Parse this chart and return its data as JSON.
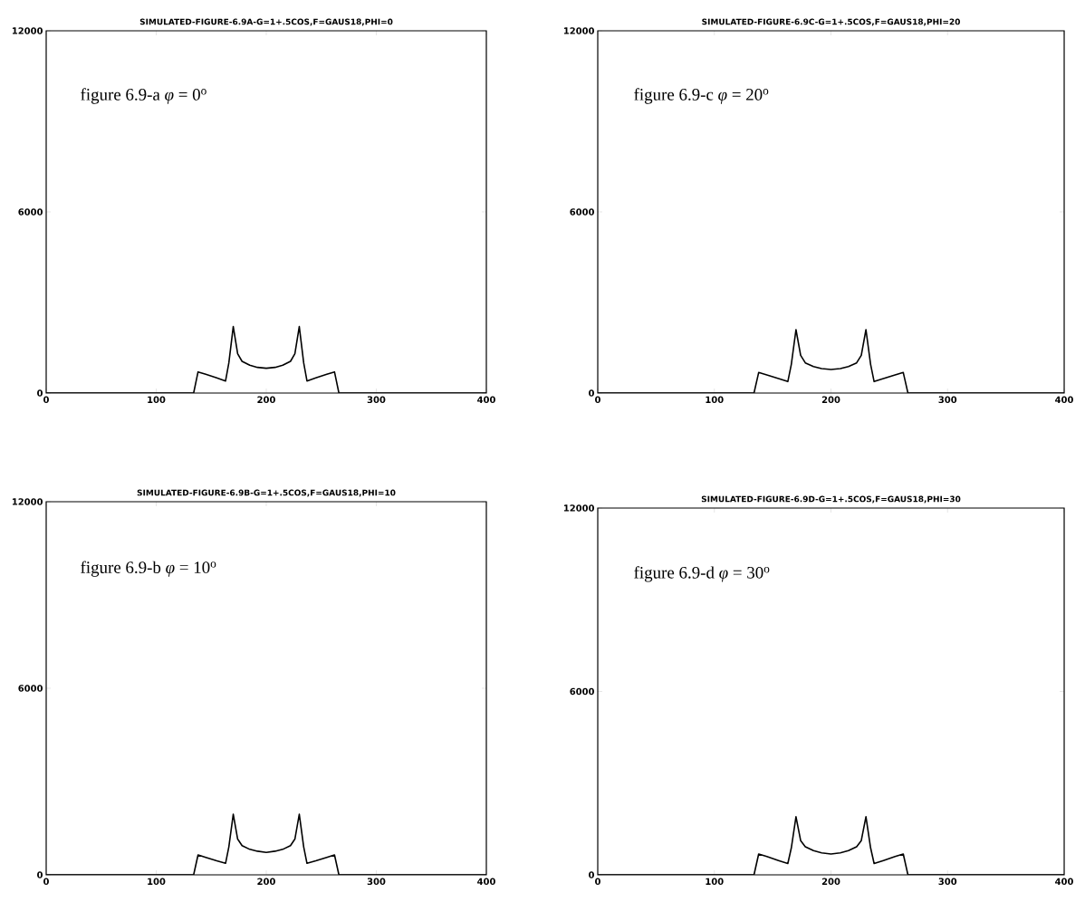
{
  "chart_data": [
    {
      "type": "line",
      "title": "SIMULATED-FIGURE-6.9A-G=1+.5COS,F=GAUS18,PHI=0",
      "annotations": [
        "figure 6.9-a  *φ* = 0$^{o}$"
      ],
      "color": "#000000",
      "x": [
        0,
        134,
        138,
        145,
        155,
        163,
        166,
        170,
        174,
        178,
        185,
        192,
        200,
        208,
        215,
        222,
        226,
        230,
        234,
        237,
        245,
        255,
        262,
        266,
        400
      ],
      "values": [
        0,
        0,
        700,
        620,
        500,
        400,
        1000,
        2200,
        1300,
        1050,
        920,
        850,
        820,
        850,
        920,
        1050,
        1300,
        2200,
        1000,
        400,
        500,
        620,
        700,
        0,
        0
      ],
      "xlim": [
        0,
        400
      ],
      "ylim": [
        0,
        12000
      ],
      "xticks": [
        0,
        100,
        200,
        300,
        400
      ],
      "yticks": [
        0,
        6000,
        12000
      ]
    },
    {
      "type": "line",
      "title": "SIMULATED-FIGURE-6.9C-G=1+.5COS,F=GAUS18,PHI=20",
      "annotations": [
        "figure 6.9-c  *φ* = 20$^{o}$"
      ],
      "color": "#000000",
      "x": [
        0,
        134,
        138,
        145,
        155,
        163,
        166,
        170,
        174,
        178,
        185,
        192,
        200,
        208,
        215,
        222,
        226,
        230,
        234,
        237,
        245,
        255,
        262,
        266,
        400
      ],
      "values": [
        0,
        0,
        680,
        600,
        480,
        380,
        950,
        2100,
        1250,
        1000,
        880,
        810,
        780,
        810,
        880,
        1000,
        1250,
        2100,
        950,
        380,
        480,
        600,
        680,
        0,
        0
      ],
      "xlim": [
        0,
        400
      ],
      "ylim": [
        0,
        12000
      ],
      "xticks": [
        0,
        100,
        200,
        300,
        400
      ],
      "yticks": [
        0,
        6000,
        12000
      ]
    },
    {
      "type": "line",
      "title": "SIMULATED-FIGURE-6.9B-G=1+.5COS,F=GAUS18,PHI=10",
      "annotations": [
        "figure 6.9-b  *φ* = 10$^{o}$"
      ],
      "color": "#000000",
      "x": [
        0,
        134,
        138,
        145,
        155,
        163,
        166,
        170,
        174,
        178,
        185,
        192,
        200,
        208,
        215,
        222,
        226,
        230,
        234,
        237,
        245,
        255,
        262,
        266,
        400
      ],
      "values": [
        0,
        0,
        640,
        560,
        450,
        370,
        900,
        1950,
        1150,
        940,
        820,
        760,
        720,
        760,
        820,
        940,
        1150,
        1950,
        900,
        370,
        450,
        560,
        640,
        0,
        0
      ],
      "xlim": [
        0,
        400
      ],
      "ylim": [
        0,
        12000
      ],
      "xticks": [
        0,
        100,
        200,
        300,
        400
      ],
      "yticks": [
        0,
        6000,
        12000
      ]
    },
    {
      "type": "line",
      "title": "SIMULATED-FIGURE-6.9D-G=1+.5COS,F=GAUS18,PHI=30",
      "annotations": [
        "figure 6.9-d  *φ* = 30$^{o}$"
      ],
      "color": "#000000",
      "x": [
        0,
        134,
        138,
        145,
        155,
        163,
        166,
        170,
        174,
        178,
        185,
        192,
        200,
        208,
        215,
        222,
        226,
        230,
        234,
        237,
        245,
        255,
        262,
        266,
        400
      ],
      "values": [
        0,
        0,
        680,
        600,
        470,
        370,
        880,
        1900,
        1120,
        920,
        790,
        720,
        680,
        720,
        790,
        920,
        1120,
        1900,
        880,
        370,
        470,
        600,
        680,
        0,
        0
      ],
      "xlim": [
        0,
        400
      ],
      "ylim": [
        0,
        12000
      ],
      "xticks": [
        0,
        100,
        200,
        300,
        400
      ],
      "yticks": [
        0,
        6000,
        12000
      ]
    }
  ]
}
